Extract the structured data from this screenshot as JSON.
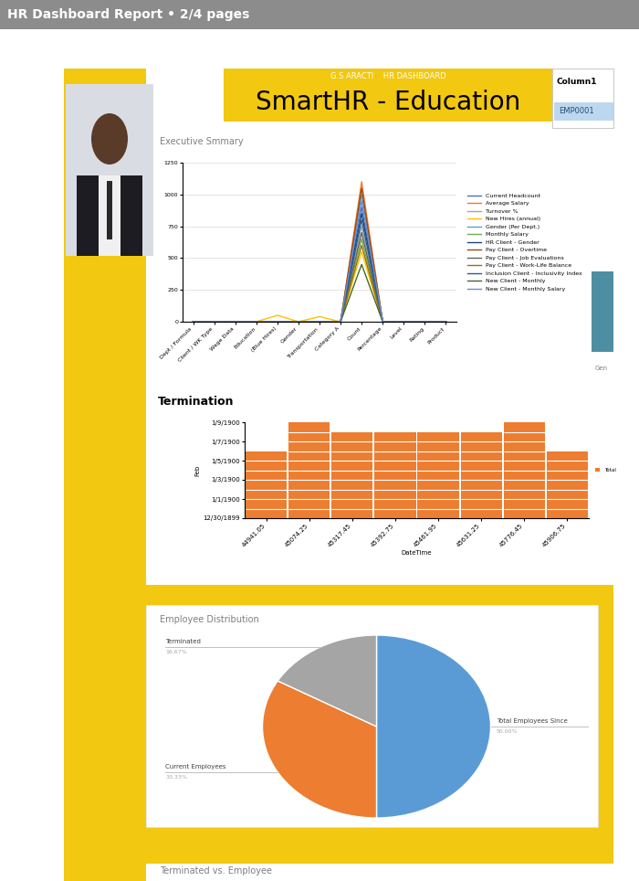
{
  "header": {
    "text": "HR Dashboard Report • 2/4 pages"
  },
  "banner": {
    "title": "SmartHR - Education",
    "subtitle": "G.S ARACTI    HR DASHBOARD"
  },
  "table": {
    "header": "Column1",
    "rows": [
      "EMP0001"
    ]
  },
  "side_label": "Gen",
  "footer": {
    "text": "Terminated vs. Employee"
  },
  "chart_data": [
    {
      "type": "line",
      "title": "Executive Smmary",
      "categories": [
        "Dept / Formula",
        "Client / WK Type",
        "Wage Data",
        "Education",
        "(Blue Hires)",
        "Gender",
        "Transportation",
        "Category A",
        "Count",
        "Percentage",
        "Level",
        "Rating",
        "Product"
      ],
      "series": [
        {
          "name": "Current Headcount",
          "color": "#4472c4",
          "values": [
            0,
            0,
            0,
            0,
            0,
            0,
            0,
            0,
            900,
            0,
            0,
            0,
            0
          ]
        },
        {
          "name": "Average Salary",
          "color": "#ed7d31",
          "values": [
            0,
            0,
            0,
            0,
            0,
            0,
            0,
            0,
            1100,
            0,
            0,
            0,
            0
          ]
        },
        {
          "name": "Turnover %",
          "color": "#a5a5a5",
          "values": [
            0,
            0,
            0,
            0,
            0,
            0,
            0,
            0,
            750,
            0,
            0,
            0,
            0
          ]
        },
        {
          "name": "New Hires (annual)",
          "color": "#ffc000",
          "values": [
            0,
            0,
            0,
            0,
            50,
            0,
            40,
            0,
            550,
            0,
            0,
            0,
            0
          ]
        },
        {
          "name": "Gender (Per Dept.)",
          "color": "#5b9bd5",
          "values": [
            0,
            0,
            0,
            0,
            0,
            0,
            0,
            0,
            1000,
            0,
            0,
            0,
            0
          ]
        },
        {
          "name": "Monthly Salary",
          "color": "#70ad47",
          "values": [
            0,
            0,
            0,
            0,
            0,
            0,
            0,
            0,
            650,
            0,
            0,
            0,
            0
          ]
        },
        {
          "name": "HR Client - Gender",
          "color": "#264478",
          "values": [
            0,
            0,
            0,
            0,
            0,
            0,
            0,
            0,
            850,
            0,
            0,
            0,
            0
          ]
        },
        {
          "name": "Pay Client - Overtime",
          "color": "#9e480e",
          "values": [
            0,
            0,
            0,
            0,
            0,
            0,
            0,
            0,
            1050,
            0,
            0,
            0,
            0
          ]
        },
        {
          "name": "Pay Client - Job Evaluations",
          "color": "#636363",
          "values": [
            0,
            0,
            0,
            0,
            0,
            0,
            0,
            0,
            700,
            0,
            0,
            0,
            0
          ]
        },
        {
          "name": "Pay Client - Work-Life Balance",
          "color": "#997300",
          "values": [
            0,
            0,
            0,
            0,
            0,
            0,
            0,
            0,
            600,
            0,
            0,
            0,
            0
          ]
        },
        {
          "name": "Inclusion Client - Inclusivity Index",
          "color": "#255e91",
          "values": [
            0,
            0,
            0,
            0,
            0,
            0,
            0,
            0,
            800,
            0,
            0,
            0,
            0
          ]
        },
        {
          "name": "New Client - Monthly",
          "color": "#43682b",
          "values": [
            0,
            0,
            0,
            0,
            0,
            0,
            0,
            0,
            450,
            0,
            0,
            0,
            0
          ]
        },
        {
          "name": "New Client - Monthly Salary",
          "color": "#698ed0",
          "values": [
            0,
            0,
            0,
            0,
            0,
            0,
            0,
            0,
            950,
            0,
            0,
            0,
            0
          ]
        }
      ],
      "ylim": [
        0,
        1250
      ],
      "yticks": [
        0,
        250,
        500,
        750,
        1000,
        1250
      ],
      "grid": true,
      "legend": "right"
    },
    {
      "type": "bar",
      "title": "Termination",
      "x_label": "DateTime",
      "y_label": "Feb",
      "categories": [
        "44941.05",
        "45074.25",
        "45317.45",
        "45392.75",
        "45461.95",
        "45631.25",
        "45776.45",
        "45906.75"
      ],
      "series": [
        {
          "name": "Total",
          "color": "#ed7d31",
          "values": [
            7,
            10,
            9,
            9,
            9,
            9,
            10,
            7
          ]
        }
      ],
      "ylim": [
        0,
        10
      ],
      "yticks": [
        {
          "value": 0,
          "label": "12/30/1899"
        },
        {
          "value": 2,
          "label": "1/1/1900"
        },
        {
          "value": 4,
          "label": "1/3/1900"
        },
        {
          "value": 6,
          "label": "1/5/1900"
        },
        {
          "value": 8,
          "label": "1/7/1900"
        },
        {
          "value": 10,
          "label": "1/9/1900"
        }
      ],
      "legend": "right"
    },
    {
      "type": "pie",
      "title": "Employee Distribution",
      "categories": [
        "Total Employees Since",
        "Current Employees",
        "Terminated"
      ],
      "values": [
        50,
        33.33,
        16.67
      ],
      "value_labels": [
        "50.00%",
        "33.33%",
        "16.67%"
      ],
      "colors": [
        "#5b9bd5",
        "#ed7d31",
        "#a5a5a5"
      ],
      "data_labels": true
    }
  ]
}
